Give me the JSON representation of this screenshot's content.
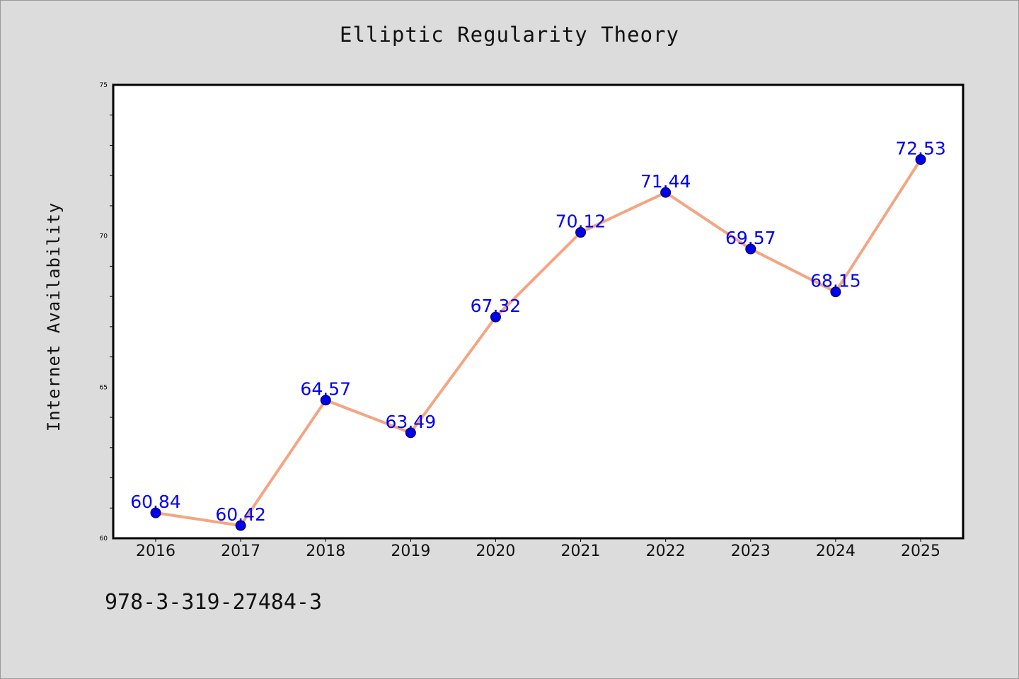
{
  "chart_data": {
    "type": "line",
    "title": "Elliptic Regularity Theory",
    "xlabel": "",
    "ylabel": "Internet Availability",
    "categories": [
      "2016",
      "2017",
      "2018",
      "2019",
      "2020",
      "2021",
      "2022",
      "2023",
      "2024",
      "2025"
    ],
    "series": [
      {
        "values": [
          60.84,
          60.42,
          64.57,
          63.49,
          67.32,
          70.12,
          71.44,
          69.57,
          68.15,
          72.53
        ]
      }
    ],
    "data_labels": [
      "60.84",
      "60.42",
      "64.57",
      "63.49",
      "67.32",
      "70.12",
      "71.44",
      "69.57",
      "68.15",
      "72.53"
    ],
    "ylim": [
      60,
      75
    ],
    "y_ticks": [
      60,
      65,
      70,
      75
    ],
    "grid": false,
    "line_color": "#f4a582",
    "marker_color": "#0000ee",
    "label_color": "#0000ee"
  },
  "footer": {
    "isbn": "978-3-319-27484-3"
  }
}
